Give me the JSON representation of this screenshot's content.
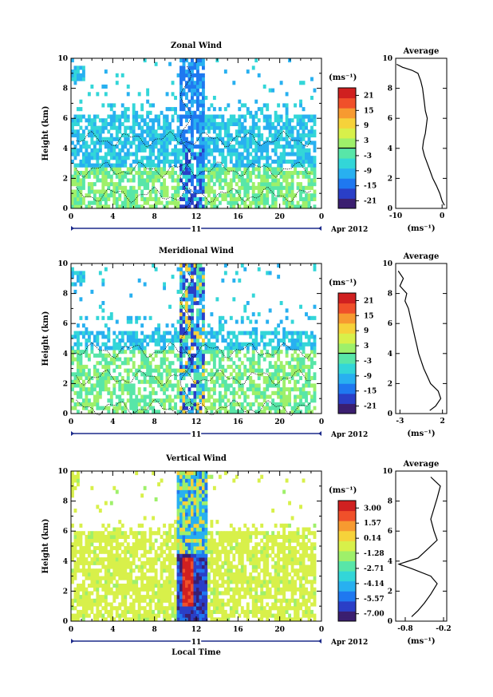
{
  "figure": {
    "xlabel": "Local Time",
    "date_label": "Apr 2012",
    "day_label": "11",
    "avg_title": "Average",
    "unit": "(ms⁻¹)",
    "x_ticks": [
      "0",
      "4",
      "8",
      "12",
      "16",
      "20",
      "0"
    ],
    "height_ticks": [
      "0",
      "2",
      "4",
      "6",
      "8",
      "10"
    ],
    "ylabel": "Height (km)"
  },
  "colormap": [
    "#3b1f70",
    "#2a3fc7",
    "#1f78f0",
    "#28b0f0",
    "#33d6d8",
    "#58e6a8",
    "#9ef06a",
    "#d8f04a",
    "#f6d23a",
    "#f79a30",
    "#f0502a",
    "#d02020"
  ],
  "chart_data": [
    {
      "type": "heatmap",
      "title": "Zonal Wind",
      "xlabel": "",
      "ylabel": "Height (km)",
      "x_range_hours": [
        0,
        24
      ],
      "ylim": [
        0,
        10
      ],
      "colorbar": {
        "label": "(ms⁻¹)",
        "ticks": [
          "21",
          "15",
          "9",
          "3",
          "-3",
          "-9",
          "-15",
          "-21"
        ],
        "range": [
          -24,
          24
        ],
        "zero_line": true
      },
      "contours": true,
      "profile": {
        "title": "Average",
        "xlabel": "(ms⁻¹)",
        "xlim": [
          -10,
          1
        ],
        "x_ticks": [
          "-10",
          "0"
        ],
        "height": [
          0.2,
          0.5,
          1.0,
          1.5,
          2.0,
          2.5,
          3.0,
          3.5,
          4.0,
          4.5,
          5.0,
          5.5,
          6.0,
          6.5,
          7.0,
          7.5,
          8.0,
          8.5,
          9.0,
          9.2,
          9.4,
          9.6
        ],
        "values": [
          0.5,
          0.0,
          -0.5,
          -1.2,
          -2.0,
          -2.6,
          -3.2,
          -3.8,
          -4.2,
          -4.0,
          -3.6,
          -3.4,
          -3.2,
          -3.6,
          -3.8,
          -4.0,
          -4.2,
          -4.6,
          -5.2,
          -6.5,
          -8.5,
          -9.8
        ]
      }
    },
    {
      "type": "heatmap",
      "title": "Meridional Wind",
      "xlabel": "",
      "ylabel": "Height (km)",
      "x_range_hours": [
        0,
        24
      ],
      "ylim": [
        0,
        10
      ],
      "colorbar": {
        "label": "(ms⁻¹)",
        "ticks": [
          "21",
          "15",
          "9",
          "3",
          "-3",
          "-9",
          "-15",
          "-21"
        ],
        "range": [
          -24,
          24
        ],
        "zero_line": true
      },
      "contours": true,
      "profile": {
        "title": "Average",
        "xlabel": "(ms⁻¹)",
        "xlim": [
          -3.5,
          2.5
        ],
        "x_ticks": [
          "-3",
          "2"
        ],
        "height": [
          0.2,
          0.5,
          1.0,
          1.5,
          2.0,
          2.5,
          3.0,
          3.5,
          4.0,
          4.5,
          5.0,
          5.5,
          6.0,
          6.5,
          7.0,
          7.5,
          8.0,
          8.5,
          9.0,
          9.5
        ],
        "values": [
          0.5,
          1.2,
          1.8,
          1.5,
          0.6,
          0.2,
          -0.2,
          -0.5,
          -0.8,
          -1.0,
          -1.2,
          -1.4,
          -1.6,
          -1.8,
          -2.0,
          -2.4,
          -2.2,
          -3.0,
          -2.6,
          -3.2
        ]
      }
    },
    {
      "type": "heatmap",
      "title": "Vertical Wind",
      "xlabel": "Local Time",
      "ylabel": "Height (km)",
      "x_range_hours": [
        0,
        24
      ],
      "ylim": [
        0,
        10
      ],
      "colorbar": {
        "label": "(ms⁻¹)",
        "ticks": [
          "3.00",
          "1.57",
          "0.14",
          "-1.28",
          "-2.71",
          "-4.14",
          "-5.57",
          "-7.00"
        ],
        "range": [
          -7.7,
          3.7
        ],
        "zero_line": false
      },
      "contours": false,
      "profile": {
        "title": "Average",
        "xlabel": "(ms⁻¹)",
        "xlim": [
          -0.95,
          -0.15
        ],
        "x_ticks": [
          "-0.8",
          "-0.2"
        ],
        "height": [
          0.3,
          0.7,
          1.2,
          1.8,
          2.5,
          3.0,
          3.5,
          3.8,
          4.2,
          4.8,
          5.4,
          6.0,
          6.8,
          7.5,
          8.2,
          9.0,
          9.6
        ],
        "values": [
          -0.7,
          -0.6,
          -0.5,
          -0.4,
          -0.3,
          -0.4,
          -0.7,
          -0.9,
          -0.6,
          -0.45,
          -0.3,
          -0.35,
          -0.4,
          -0.35,
          -0.3,
          -0.25,
          -0.4
        ]
      }
    }
  ]
}
